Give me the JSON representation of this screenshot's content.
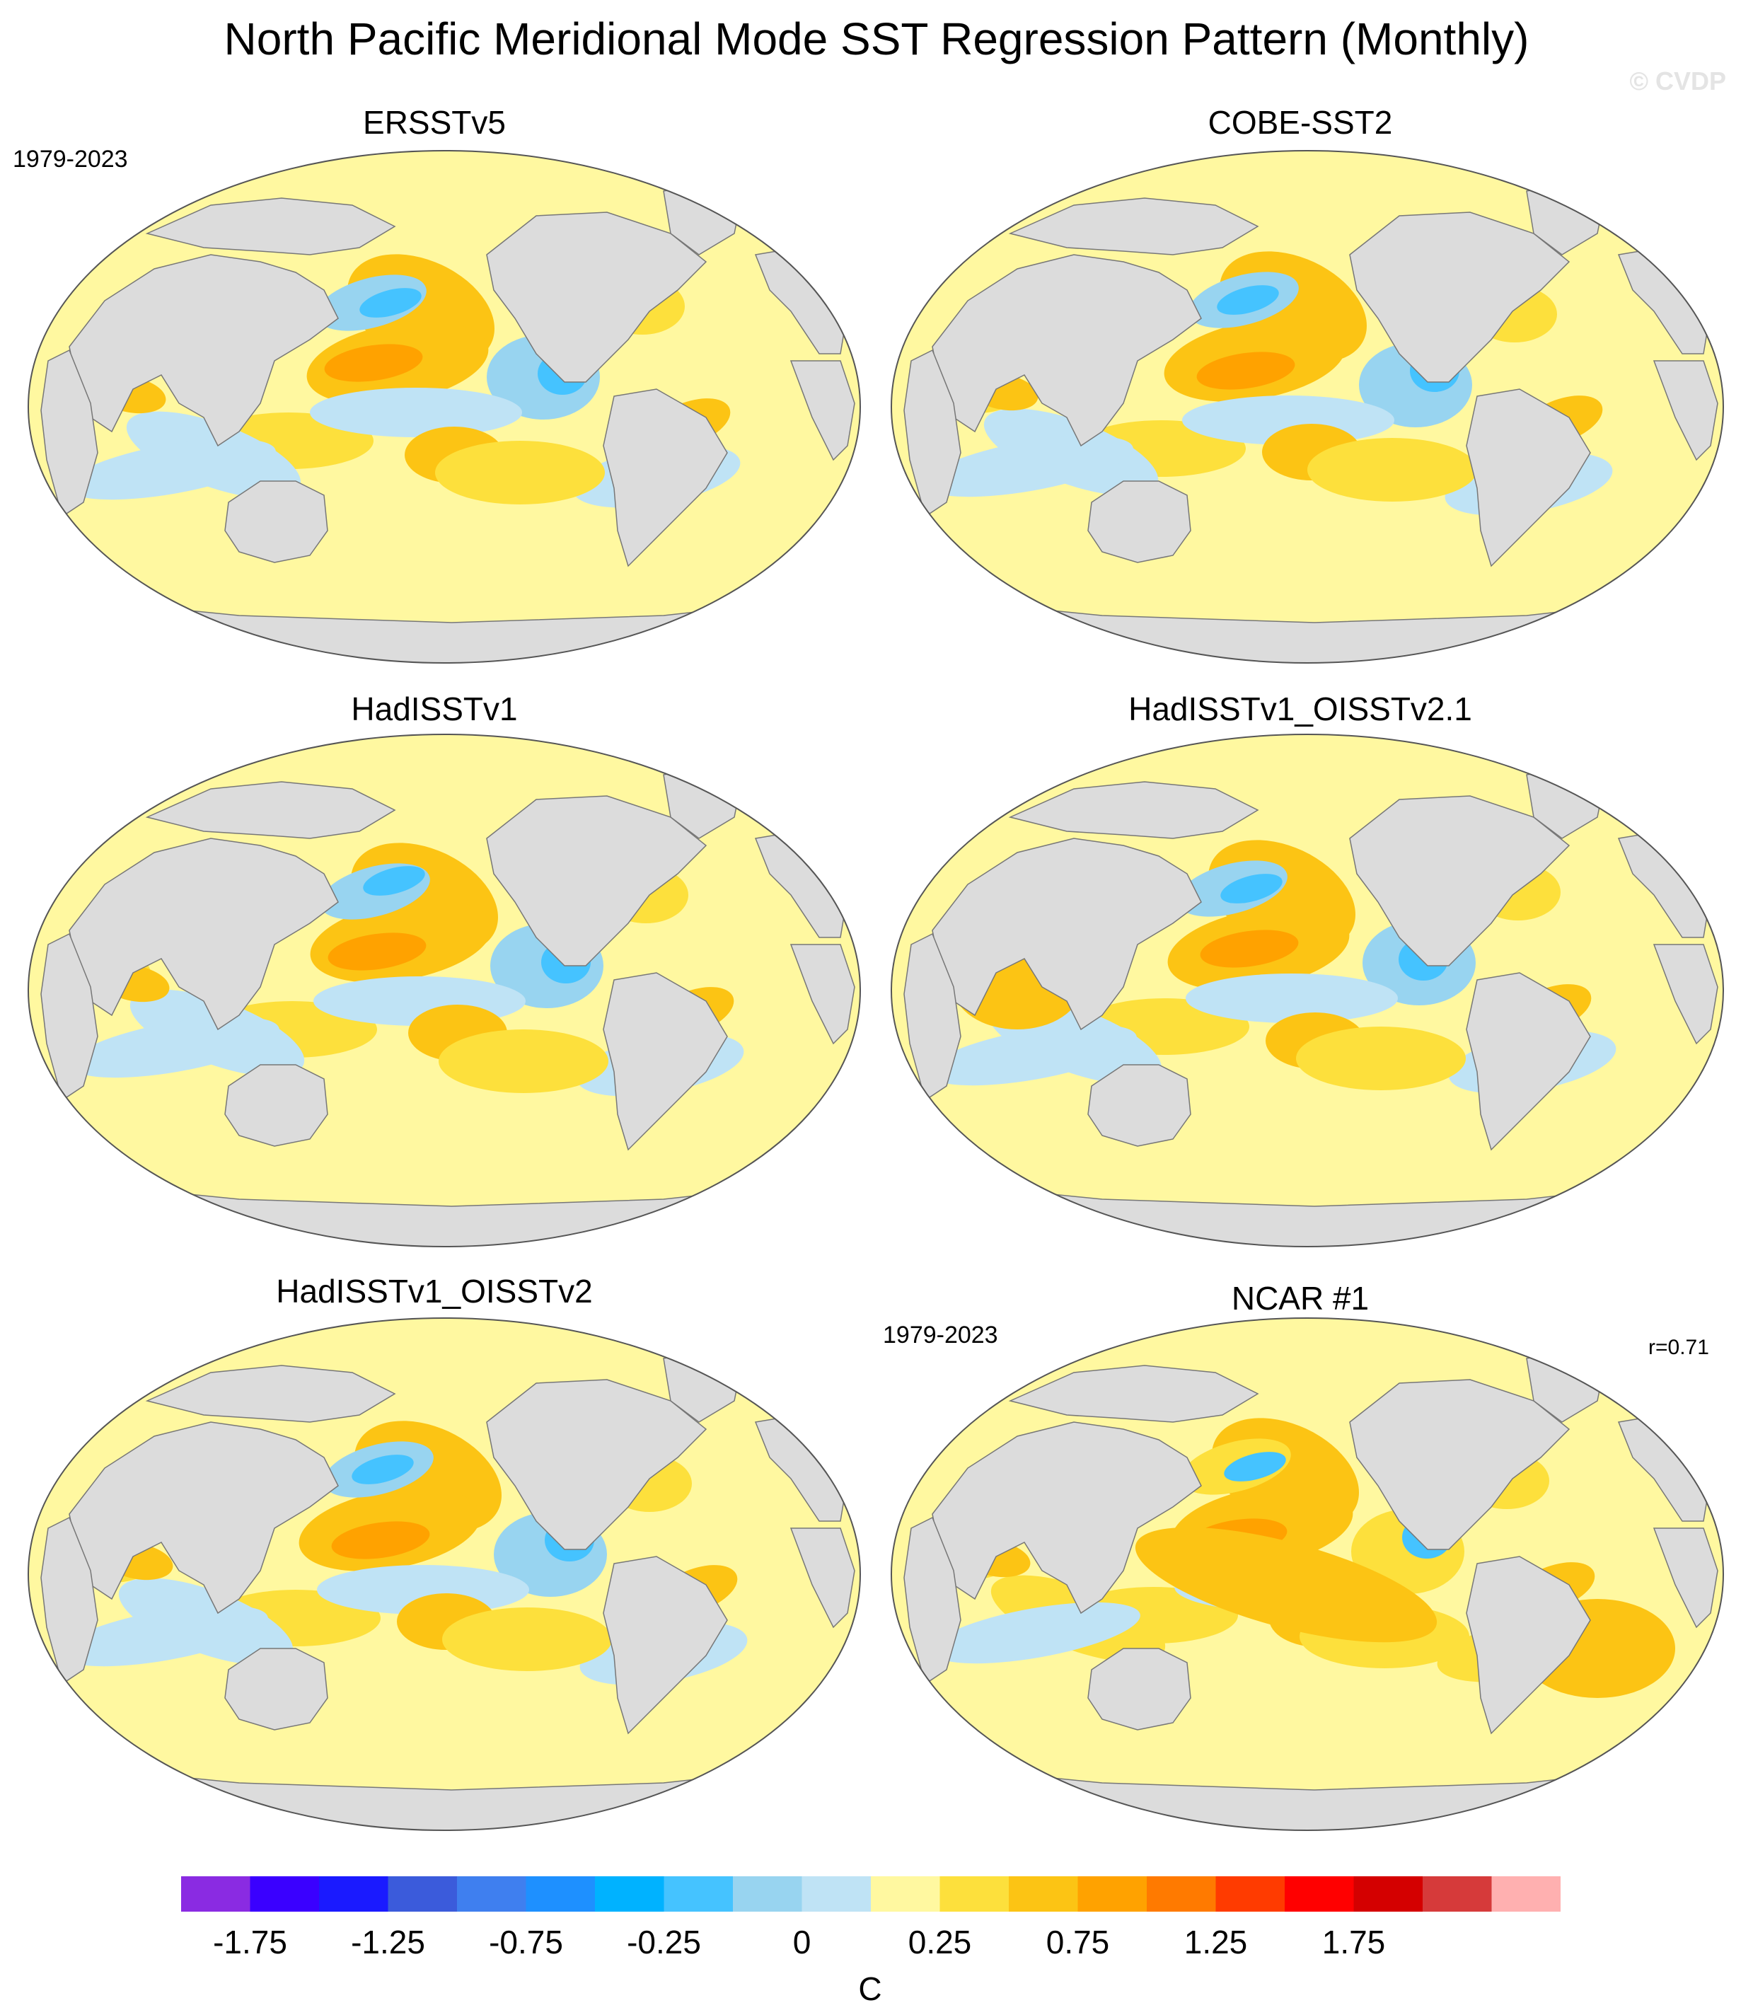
{
  "title": "North Pacific Meridional Mode SST Regression Pattern (Monthly)",
  "watermark": "© CVDP",
  "panels": [
    {
      "title": "ERSSTv5",
      "period": "1979-2023",
      "corr": "",
      "variant": 0
    },
    {
      "title": "COBE-SST2",
      "period": "",
      "corr": "",
      "variant": 1
    },
    {
      "title": "HadISSTv1",
      "period": "",
      "corr": "",
      "variant": 2
    },
    {
      "title": "HadISSTv1_OISSTv2.1",
      "period": "",
      "corr": "",
      "variant": 3
    },
    {
      "title": "HadISSTv1_OISSTv2",
      "period": "",
      "corr": "",
      "variant": 4
    },
    {
      "title": "NCAR #1",
      "period": "1979-2023",
      "corr": "r=0.71",
      "variant": 5
    }
  ],
  "colorbar": {
    "units": "C",
    "colors": [
      "#8a2be2",
      "#3a00ff",
      "#1a1aff",
      "#3b5bdb",
      "#3f7fef",
      "#1e90ff",
      "#00b2ff",
      "#45c3ff",
      "#98d4f0",
      "#bfe3f5",
      "#fff8a0",
      "#fde03c",
      "#fcc414",
      "#ffa200",
      "#ff7a00",
      "#ff3b00",
      "#ff0000",
      "#d40000",
      "#d63a3a",
      "#ffb0b0"
    ],
    "tick_labels": [
      "-1.75",
      "-1.25",
      "-0.75",
      "-0.25",
      "0",
      "0.25",
      "0.75",
      "1.25",
      "1.75"
    ]
  },
  "legend_colors": {
    "land": "#dcdcdc",
    "neutral_positive": "#fff8a0",
    "weak_positive": "#fde03c",
    "moderate_positive": "#fcc414",
    "strong_positive": "#ffa200",
    "very_strong_positive": "#ff8a00",
    "weak_negative": "#bfe3f5",
    "moderate_negative": "#98d4f0",
    "strong_negative": "#45c3ff",
    "very_strong_negative": "#1e9bff"
  }
}
